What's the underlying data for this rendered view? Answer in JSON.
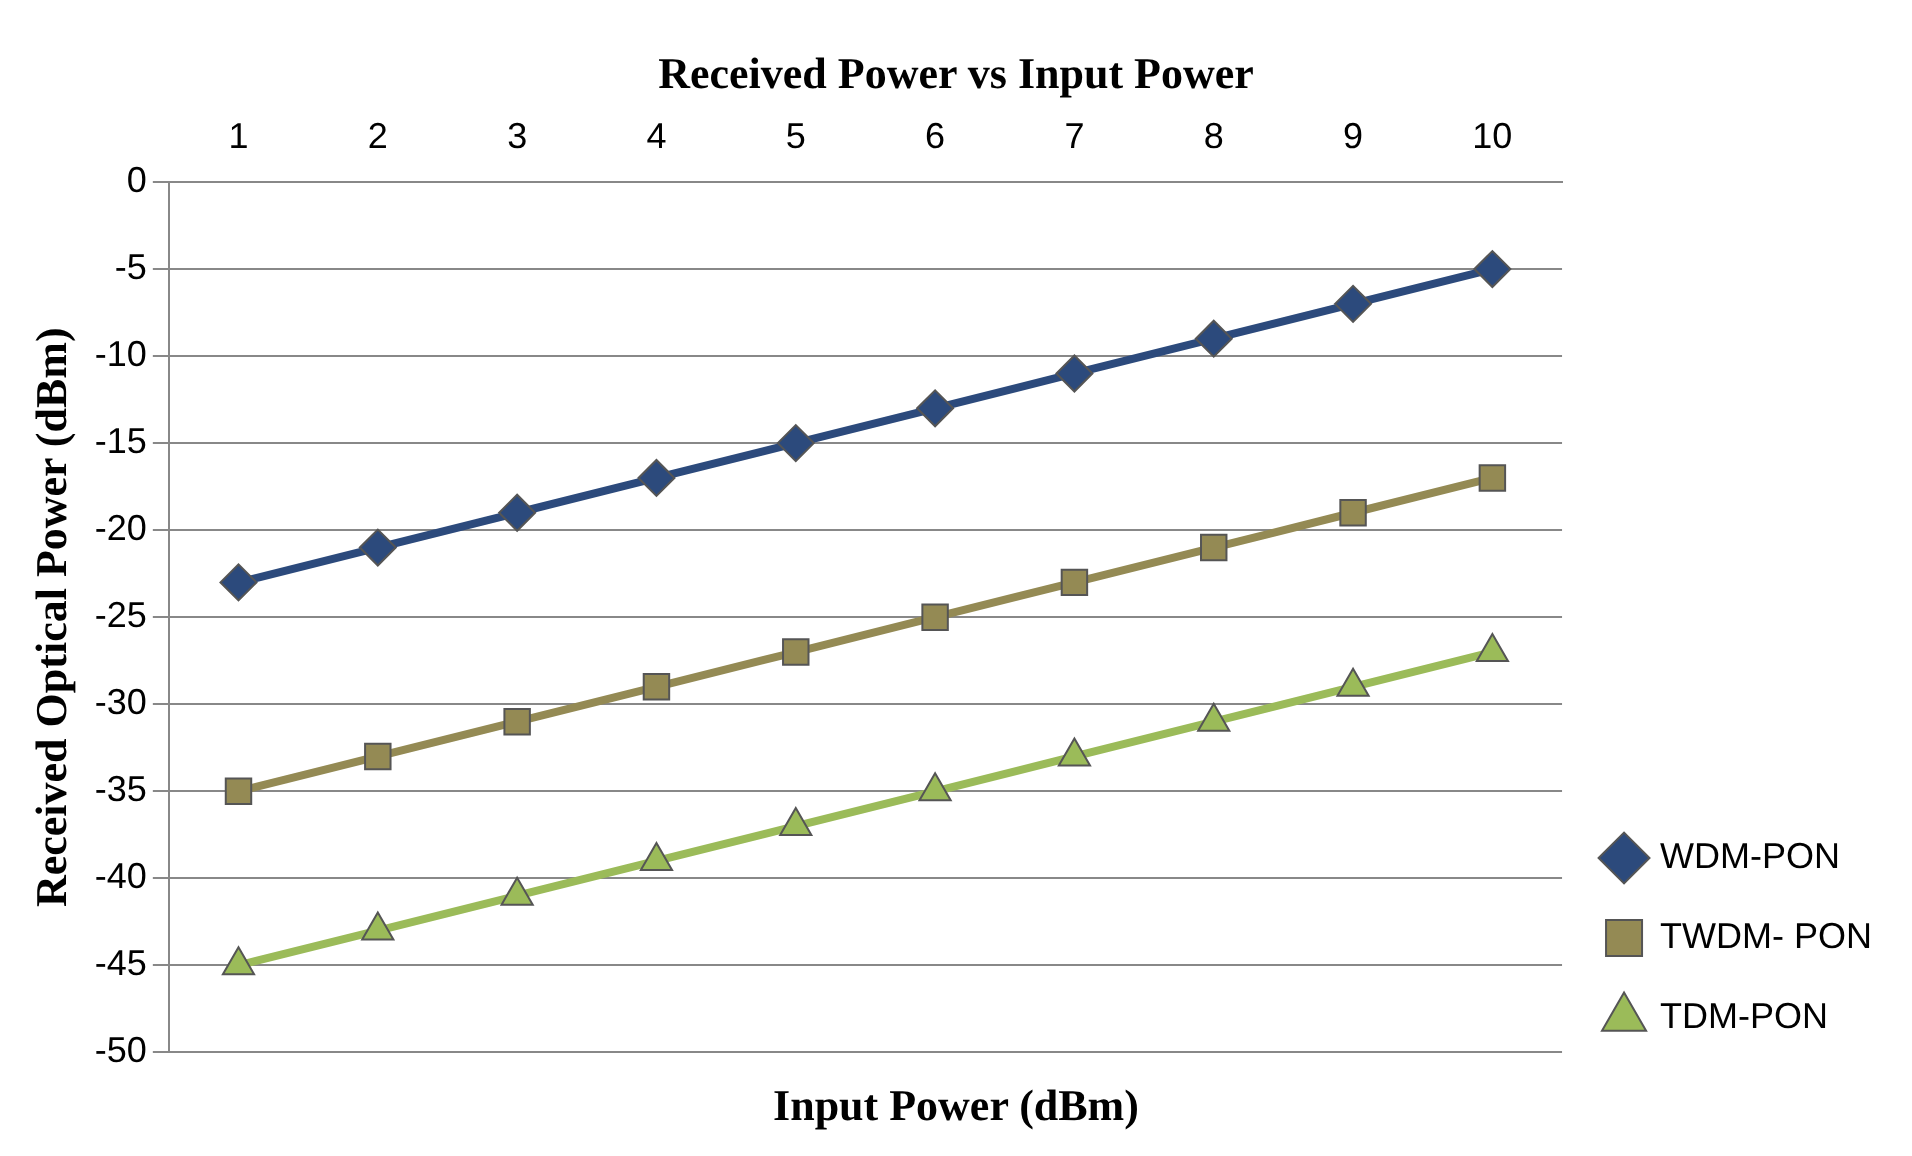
{
  "chart_data": {
    "type": "line",
    "title": "Received Power vs Input Power",
    "xlabel": "Input Power (dBm)",
    "ylabel": "Received Optical Power (dBm)",
    "categories": [
      "1",
      "2",
      "3",
      "4",
      "5",
      "6",
      "7",
      "8",
      "9",
      "10"
    ],
    "series": [
      {
        "name": "WDM-PON",
        "color": "#2c4a7c",
        "marker": "diamond",
        "values": [
          -23,
          -21,
          -19,
          -17,
          -15,
          -13,
          -11,
          -9,
          -7,
          -5
        ]
      },
      {
        "name": "TWDM- PON",
        "color": "#948a54",
        "marker": "square",
        "values": [
          -35,
          -33,
          -31,
          -29,
          -27,
          -25,
          -23,
          -21,
          -19,
          -17
        ]
      },
      {
        "name": "TDM-PON",
        "color": "#9bbb59",
        "marker": "triangle",
        "values": [
          -45,
          -43,
          -41,
          -39,
          -37,
          -35,
          -33,
          -31,
          -29,
          -27
        ]
      }
    ],
    "ylim": [
      -50,
      0
    ],
    "yticks": [
      -50,
      -45,
      -40,
      -35,
      -30,
      -25,
      -20,
      -15,
      -10,
      -5,
      0
    ],
    "grid": "y",
    "legend": "bottom right"
  }
}
